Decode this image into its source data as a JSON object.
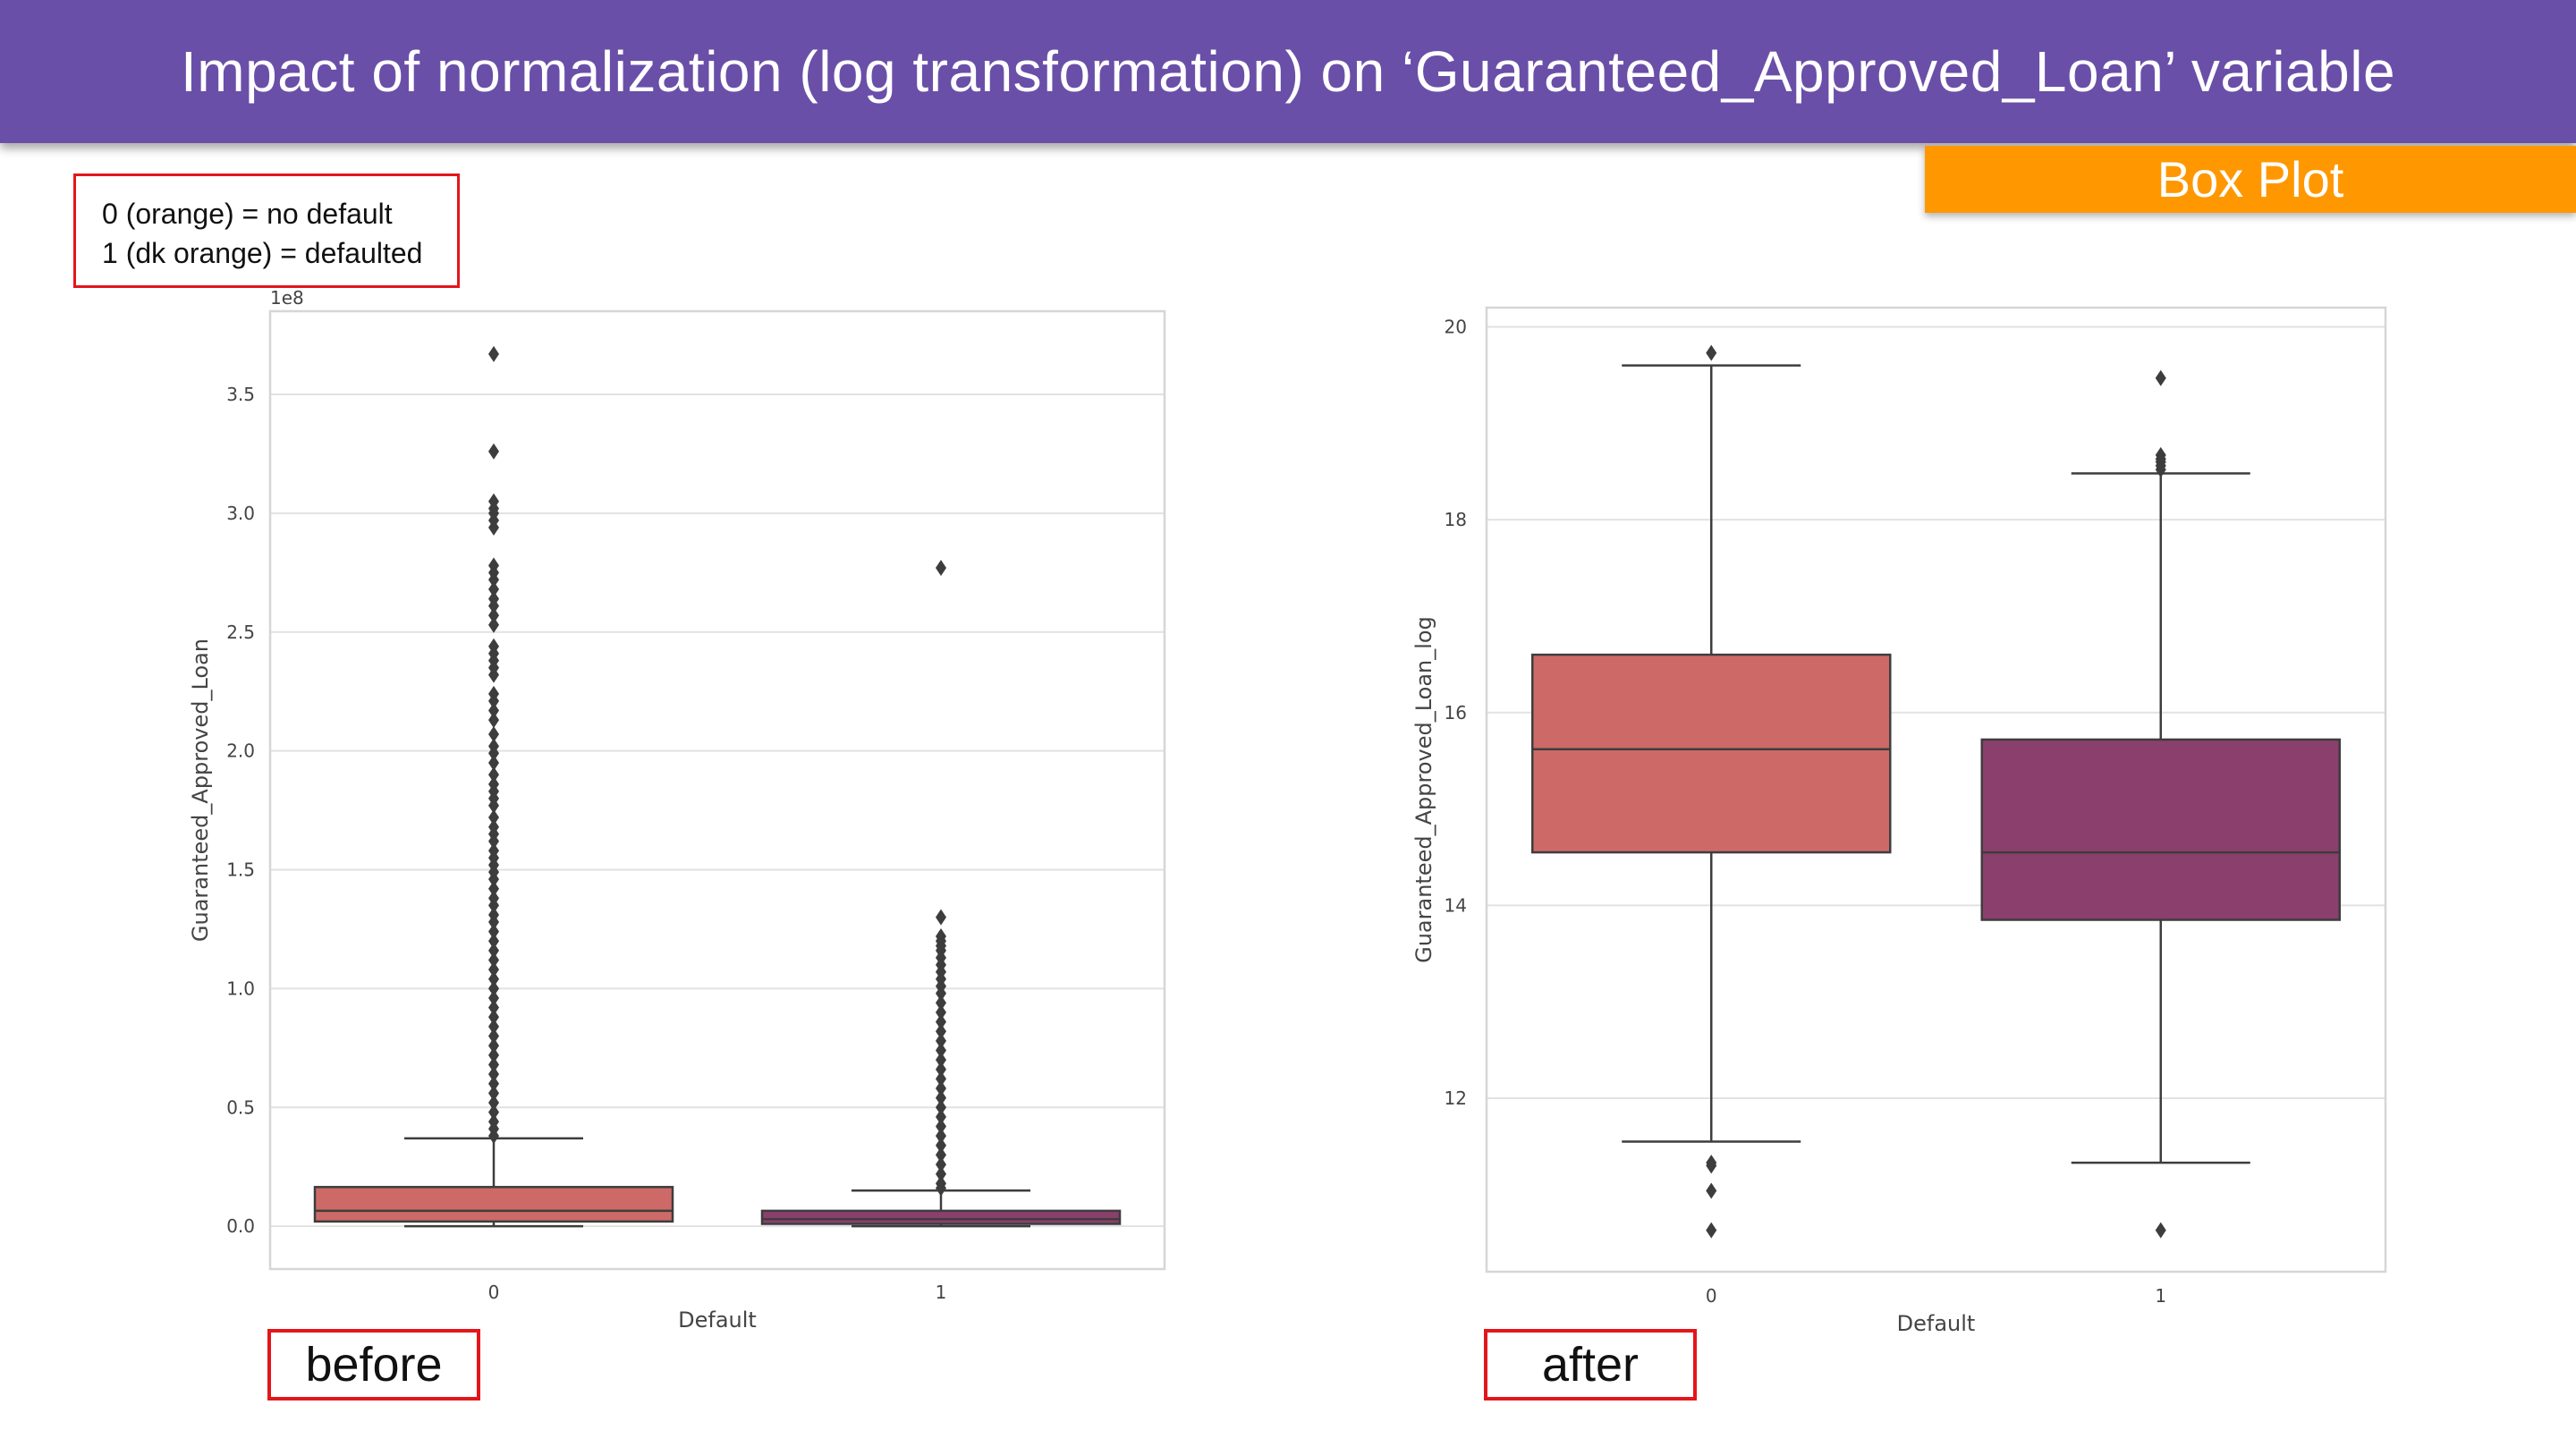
{
  "header": {
    "title": "Impact of normalization (log transformation) on ‘Guaranteed_Approved_Loan’ variable"
  },
  "tag": {
    "label": "Box Plot"
  },
  "legend": {
    "lines": [
      "0 (orange) = no default",
      "1 (dk orange) = defaulted"
    ]
  },
  "panel_labels": {
    "before": "before",
    "after": "after"
  },
  "colors": {
    "default_0": "#cd6a67",
    "default_1": "#8b3f6d",
    "header": "#6a4fa8",
    "tag": "#ff9800",
    "highlight": "#e3161b"
  },
  "chart_data": [
    {
      "type": "box",
      "title": "",
      "xlabel": "Default",
      "ylabel": "Guaranteed_Approved_Loan",
      "y_scale_note": "1e8",
      "categories": [
        "0",
        "1"
      ],
      "ylim": [
        -0.18,
        3.85
      ],
      "yticks": [
        0.0,
        0.5,
        1.0,
        1.5,
        2.0,
        2.5,
        3.0,
        3.5
      ],
      "ytick_labels": [
        "0.0",
        "0.5",
        "1.0",
        "1.5",
        "2.0",
        "2.5",
        "3.0",
        "3.5"
      ],
      "grid": true,
      "boxes": [
        {
          "category": "0",
          "whisker_low": 0.0,
          "q1": 0.02,
          "median": 0.065,
          "q3": 0.165,
          "whisker_high": 0.37,
          "outliers": [
            3.67,
            3.26,
            3.05,
            3.02,
            3.0,
            2.97,
            2.94,
            2.78,
            2.75,
            2.72,
            2.68,
            2.64,
            2.61,
            2.57,
            2.53,
            2.44,
            2.41,
            2.38,
            2.35,
            2.32,
            2.24,
            2.21,
            2.17,
            2.13,
            2.07,
            2.02,
            1.99,
            1.95,
            1.9,
            1.86,
            1.83,
            1.8,
            1.77,
            1.72,
            1.68,
            1.65,
            1.62,
            1.58,
            1.55,
            1.52,
            1.49,
            1.46,
            1.42,
            1.38,
            1.35,
            1.31,
            1.28,
            1.24,
            1.2,
            1.16,
            1.12,
            1.08,
            1.04,
            1.0,
            0.96,
            0.92,
            0.88,
            0.84,
            0.8,
            0.76,
            0.72,
            0.68,
            0.64,
            0.6,
            0.56,
            0.52,
            0.48,
            0.44,
            0.41,
            0.38
          ]
        },
        {
          "category": "1",
          "whisker_low": 0.0,
          "q1": 0.01,
          "median": 0.03,
          "q3": 0.065,
          "whisker_high": 0.15,
          "outliers": [
            2.77,
            1.3,
            1.22,
            1.2,
            1.18,
            1.16,
            1.13,
            1.1,
            1.07,
            1.04,
            1.01,
            0.98,
            0.94,
            0.9,
            0.86,
            0.82,
            0.78,
            0.74,
            0.7,
            0.66,
            0.62,
            0.58,
            0.54,
            0.5,
            0.46,
            0.42,
            0.38,
            0.34,
            0.3,
            0.26,
            0.22,
            0.18,
            0.16
          ]
        }
      ]
    },
    {
      "type": "box",
      "title": "",
      "xlabel": "Default",
      "ylabel": "Guaranteed_Approved_Loan_log",
      "categories": [
        "0",
        "1"
      ],
      "ylim": [
        10.2,
        20.2
      ],
      "yticks": [
        12,
        14,
        16,
        18,
        20
      ],
      "ytick_labels": [
        "12",
        "14",
        "16",
        "18",
        "20"
      ],
      "grid": true,
      "boxes": [
        {
          "category": "0",
          "whisker_low": 11.55,
          "q1": 14.55,
          "median": 15.62,
          "q3": 16.6,
          "whisker_high": 19.6,
          "outliers": [
            19.73,
            11.33,
            11.3,
            11.04,
            10.63
          ]
        },
        {
          "category": "1",
          "whisker_low": 11.33,
          "q1": 13.85,
          "median": 14.55,
          "q3": 15.72,
          "whisker_high": 18.48,
          "outliers": [
            19.47,
            18.67,
            18.63,
            18.6,
            18.56,
            18.52,
            10.63
          ]
        }
      ]
    }
  ]
}
